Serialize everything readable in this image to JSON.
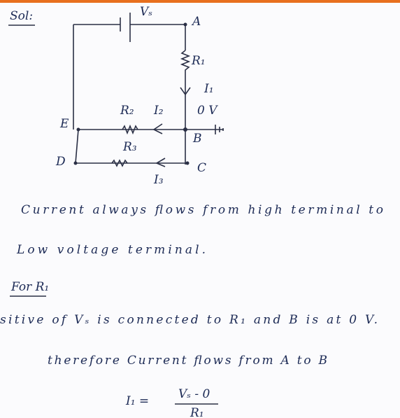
{
  "header": {
    "title": "Sol:"
  },
  "circuit": {
    "labels": [
      "Vₛ",
      "A",
      "R₁",
      "I₁",
      "R₂",
      "I₂",
      "0 V",
      "B",
      "E",
      "D",
      "R₃",
      "C",
      "I₃"
    ]
  },
  "lines": [
    "Current always flows from high terminal to",
    "Low voltage terminal.",
    "For R₁",
    "sitive of Vₛ is connected to R₁ and B is at 0 V.",
    "therefore Current flows from A to B"
  ],
  "equation": {
    "lhs": "I₁ =",
    "numerator": "Vₛ - 0",
    "denominator": "R₁"
  }
}
